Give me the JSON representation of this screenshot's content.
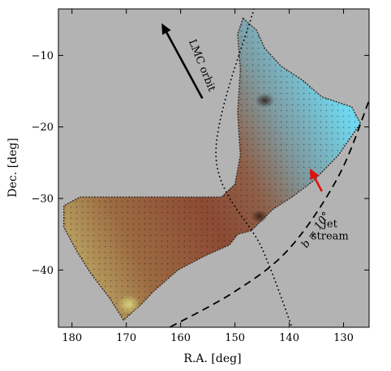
{
  "chart_data": {
    "type": "map",
    "xlabel": "R.A. [deg]",
    "ylabel": "Dec. [deg]",
    "xlim": [
      182.5,
      125.3
    ],
    "ylim": [
      -48,
      -3.5
    ],
    "x_ticks": [
      180,
      170,
      160,
      150,
      140,
      130
    ],
    "x_tick_labels": [
      "180",
      "170",
      "160",
      "150",
      "140",
      "130"
    ],
    "y_ticks": [
      -10,
      -20,
      -30,
      -40
    ],
    "y_tick_labels": [
      "−10",
      "−20",
      "−30",
      "−40"
    ],
    "grid": false,
    "background_color": "#b3b3b3",
    "footprint": {
      "description_colors": [
        "#8a4030",
        "#9a6a4a",
        "#a07a50",
        "#7fb8c8",
        "#5fd0e8",
        "#c8d080"
      ],
      "outline_radec": [
        [
          148.5,
          -4.8
        ],
        [
          146.0,
          -6.5
        ],
        [
          144.5,
          -9.0
        ],
        [
          141.5,
          -11.5
        ],
        [
          137.5,
          -13.5
        ],
        [
          134.0,
          -15.8
        ],
        [
          128.5,
          -17.2
        ],
        [
          126.9,
          -19.5
        ],
        [
          131.0,
          -24.0
        ],
        [
          135.5,
          -27.5
        ],
        [
          139.5,
          -29.8
        ],
        [
          143.0,
          -31.5
        ],
        [
          147.0,
          -34.5
        ],
        [
          149.5,
          -35.0
        ],
        [
          151.0,
          -36.5
        ],
        [
          155.5,
          -38.0
        ],
        [
          160.5,
          -40.0
        ],
        [
          165.0,
          -43.0
        ],
        [
          167.5,
          -45.0
        ],
        [
          170.5,
          -47.0
        ],
        [
          173.0,
          -44.0
        ],
        [
          176.5,
          -40.5
        ],
        [
          179.0,
          -37.5
        ],
        [
          181.5,
          -34.0
        ],
        [
          181.5,
          -31.0
        ],
        [
          178.5,
          -29.8
        ],
        [
          152.5,
          -29.8
        ],
        [
          150.0,
          -28.0
        ],
        [
          149.0,
          -24.0
        ],
        [
          149.5,
          -18.0
        ],
        [
          149.0,
          -12.0
        ],
        [
          149.5,
          -7.0
        ]
      ]
    },
    "lines": [
      {
        "style": "dotted",
        "points": [
          [
            146.5,
            -3.5
          ],
          [
            153.5,
            -24.0
          ],
          [
            145.0,
            -37.0
          ],
          [
            139.5,
            -48.0
          ]
        ]
      },
      {
        "style": "dashed",
        "label": "b = 10°",
        "points": [
          [
            125.4,
            -16.5
          ],
          [
            131.0,
            -27.0
          ],
          [
            140.0,
            -37.0
          ],
          [
            150.0,
            -43.0
          ],
          [
            162.0,
            -48.0
          ]
        ]
      }
    ],
    "annotations": [
      {
        "text": "LMC orbit",
        "color": "#000000",
        "arrow": {
          "from": [
            156.0,
            -16.0
          ],
          "to": [
            163.5,
            -5.5
          ]
        },
        "text_at": [
          158.5,
          -8.0
        ],
        "rotation": 68
      },
      {
        "text": "Jet\nstream",
        "color": "#dd1111",
        "arrow": {
          "from": [
            134.0,
            -29.0
          ],
          "to": [
            136.2,
            -25.8
          ]
        },
        "text_at": [
          132.5,
          -34.0
        ]
      }
    ]
  }
}
